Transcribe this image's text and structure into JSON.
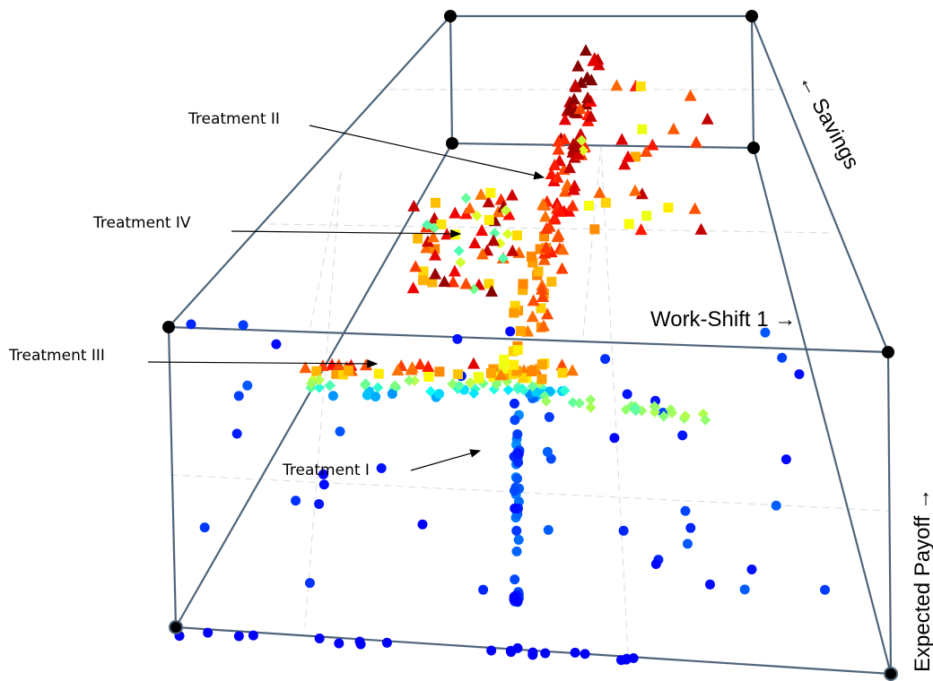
{
  "axis_labels": {
    "x": "Work-Shift 1 →",
    "y": "← Savings",
    "z": "Expected Payoff →"
  },
  "annotations": [
    "Treatment II",
    "Treatment IV",
    "Treatment III",
    "Treatment I"
  ]
}
